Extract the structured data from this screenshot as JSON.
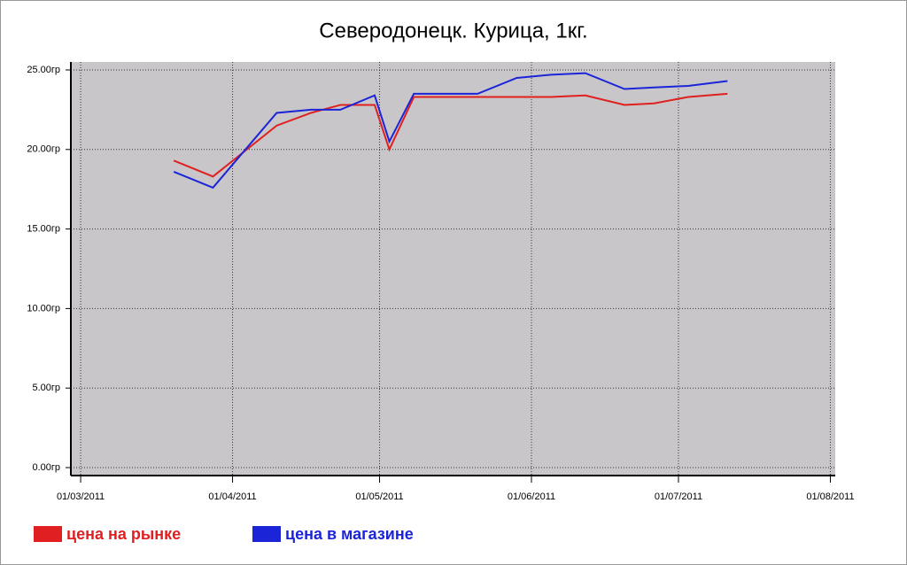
{
  "chart_data": {
    "type": "line",
    "title": "Северодонецк. Курица, 1кг.",
    "x": [
      "2011-03-20",
      "2011-03-28",
      "2011-04-10",
      "2011-04-17",
      "2011-04-23",
      "2011-04-30",
      "2011-05-03",
      "2011-05-08",
      "2011-05-16",
      "2011-05-21",
      "2011-05-29",
      "2011-06-05",
      "2011-06-12",
      "2011-06-20",
      "2011-06-26",
      "2011-07-03",
      "2011-07-11"
    ],
    "series": [
      {
        "name": "цена на рынке",
        "color": "#e02020",
        "values": [
          19.3,
          18.3,
          21.5,
          22.3,
          22.8,
          22.8,
          20.0,
          23.3,
          23.3,
          23.3,
          23.3,
          23.3,
          23.4,
          22.8,
          22.9,
          23.3,
          23.5
        ]
      },
      {
        "name": "цена в магазине",
        "color": "#1c24d8",
        "values": [
          18.6,
          17.6,
          22.3,
          22.5,
          22.5,
          23.4,
          20.5,
          23.5,
          23.5,
          23.5,
          24.5,
          24.7,
          24.8,
          23.8,
          23.9,
          24.0,
          24.3
        ]
      }
    ],
    "xlim": [
      "2011-02-27",
      "2011-08-02"
    ],
    "xticks": [
      {
        "value": "2011-03-01",
        "label": "01/03/2011"
      },
      {
        "value": "2011-04-01",
        "label": "01/04/2011"
      },
      {
        "value": "2011-05-01",
        "label": "01/05/2011"
      },
      {
        "value": "2011-06-01",
        "label": "01/06/2011"
      },
      {
        "value": "2011-07-01",
        "label": "01/07/2011"
      },
      {
        "value": "2011-08-01",
        "label": "01/08/2011"
      }
    ],
    "ylim": [
      -0.5,
      25.5
    ],
    "yticks": [
      {
        "value": 0,
        "label": "0.00гр"
      },
      {
        "value": 5,
        "label": "5.00гр"
      },
      {
        "value": 10,
        "label": "10.00гр"
      },
      {
        "value": 15,
        "label": "15.00гр"
      },
      {
        "value": 20,
        "label": "20.00гр"
      },
      {
        "value": 25,
        "label": "25.00гр"
      }
    ],
    "grid": true
  }
}
